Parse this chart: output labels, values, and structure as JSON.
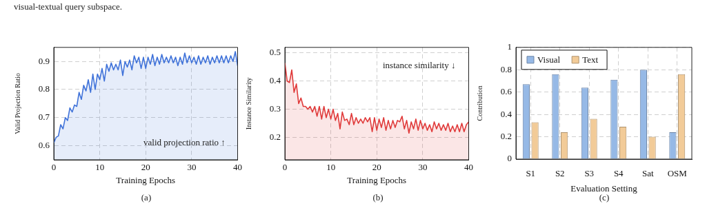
{
  "chart_data": [
    {
      "type": "area",
      "xlabel": "Training Epochs",
      "ylabel": "Valid Projection Ratio",
      "xlim": [
        0,
        40
      ],
      "xticks": [
        0,
        10,
        20,
        30,
        40
      ],
      "ylim": [
        0.55,
        0.95
      ],
      "yticks": [
        0.6,
        0.7,
        0.8,
        0.9
      ],
      "grid": true,
      "x": [
        0,
        0.5,
        1,
        1.5,
        2,
        2.5,
        3,
        3.5,
        4,
        4.5,
        5,
        5.5,
        6,
        6.5,
        7,
        7.5,
        8,
        8.5,
        9,
        9.5,
        10,
        10.5,
        11,
        11.5,
        12,
        12.5,
        13,
        13.5,
        14,
        14.5,
        15,
        15.5,
        16,
        16.5,
        17,
        17.5,
        18,
        18.5,
        19,
        19.5,
        20,
        20.5,
        21,
        21.5,
        22,
        22.5,
        23,
        23.5,
        24,
        24.5,
        25,
        25.5,
        26,
        26.5,
        27,
        27.5,
        28,
        28.5,
        29,
        29.5,
        30,
        30.5,
        31,
        31.5,
        32,
        32.5,
        33,
        33.5,
        34,
        34.5,
        35,
        35.5,
        36,
        36.5,
        37,
        37.5,
        38,
        38.5,
        39,
        39.5,
        40
      ],
      "series": [
        {
          "color": "#3f72d9",
          "values": [
            0.61,
            0.63,
            0.635,
            0.675,
            0.66,
            0.7,
            0.69,
            0.735,
            0.72,
            0.745,
            0.74,
            0.79,
            0.765,
            0.815,
            0.795,
            0.835,
            0.79,
            0.855,
            0.8,
            0.855,
            0.835,
            0.875,
            0.83,
            0.89,
            0.865,
            0.895,
            0.87,
            0.89,
            0.87,
            0.905,
            0.85,
            0.9,
            0.88,
            0.905,
            0.87,
            0.92,
            0.895,
            0.915,
            0.875,
            0.915,
            0.875,
            0.915,
            0.89,
            0.925,
            0.885,
            0.915,
            0.89,
            0.925,
            0.895,
            0.915,
            0.895,
            0.92,
            0.895,
            0.915,
            0.885,
            0.915,
            0.89,
            0.93,
            0.895,
            0.92,
            0.895,
            0.915,
            0.89,
            0.92,
            0.89,
            0.915,
            0.895,
            0.92,
            0.89,
            0.915,
            0.895,
            0.92,
            0.895,
            0.92,
            0.895,
            0.92,
            0.895,
            0.92,
            0.9,
            0.935,
            0.885
          ]
        }
      ],
      "annotations": [
        "visual-textual query subspace.",
        "valid projection ratio ↑",
        "(a)"
      ]
    },
    {
      "type": "area",
      "xlabel": "Training Epochs",
      "ylabel": "Instance Similarity",
      "xlim": [
        0,
        40
      ],
      "xticks": [
        0,
        10,
        20,
        30,
        40
      ],
      "ylim": [
        0.12,
        0.52
      ],
      "yticks": [
        0.2,
        0.3,
        0.4,
        0.5
      ],
      "grid": true,
      "x": [
        0,
        0.5,
        1,
        1.5,
        2,
        2.5,
        3,
        3.5,
        4,
        4.5,
        5,
        5.5,
        6,
        6.5,
        7,
        7.5,
        8,
        8.5,
        9,
        9.5,
        10,
        10.5,
        11,
        11.5,
        12,
        12.5,
        13,
        13.5,
        14,
        14.5,
        15,
        15.5,
        16,
        16.5,
        17,
        17.5,
        18,
        18.5,
        19,
        19.5,
        20,
        20.5,
        21,
        21.5,
        22,
        22.5,
        23,
        23.5,
        24,
        24.5,
        25,
        25.5,
        26,
        26.5,
        27,
        27.5,
        28,
        28.5,
        29,
        29.5,
        30,
        30.5,
        31,
        31.5,
        32,
        32.5,
        33,
        33.5,
        34,
        34.5,
        35,
        35.5,
        36,
        36.5,
        37,
        37.5,
        38,
        38.5,
        39,
        39.5,
        40
      ],
      "series": [
        {
          "color": "#e03a3a",
          "values": [
            0.465,
            0.4,
            0.395,
            0.44,
            0.36,
            0.39,
            0.32,
            0.34,
            0.31,
            0.31,
            0.3,
            0.31,
            0.29,
            0.31,
            0.275,
            0.31,
            0.265,
            0.31,
            0.27,
            0.3,
            0.265,
            0.3,
            0.26,
            0.285,
            0.23,
            0.29,
            0.26,
            0.265,
            0.245,
            0.285,
            0.245,
            0.27,
            0.25,
            0.265,
            0.25,
            0.27,
            0.255,
            0.27,
            0.22,
            0.27,
            0.225,
            0.265,
            0.235,
            0.27,
            0.225,
            0.26,
            0.23,
            0.26,
            0.235,
            0.26,
            0.255,
            0.275,
            0.23,
            0.26,
            0.215,
            0.255,
            0.23,
            0.265,
            0.225,
            0.26,
            0.23,
            0.25,
            0.225,
            0.245,
            0.22,
            0.255,
            0.23,
            0.25,
            0.225,
            0.245,
            0.225,
            0.25,
            0.22,
            0.24,
            0.22,
            0.245,
            0.22,
            0.25,
            0.22,
            0.245,
            0.255
          ]
        }
      ],
      "annotations": [
        "instance similarity ↓",
        "(b)"
      ]
    },
    {
      "type": "bar",
      "xlabel": "Evaluation Setting",
      "ylabel": "Contribution",
      "categories": [
        "S1",
        "S2",
        "S3",
        "S4",
        "Sat",
        "OSM"
      ],
      "ylim": [
        0,
        1
      ],
      "yticks": [
        0,
        0.2,
        0.4,
        0.6,
        0.8,
        1
      ],
      "grid": true,
      "legend": "top left",
      "series": [
        {
          "name": "Visual",
          "color": "#96b9e6",
          "values": [
            0.67,
            0.76,
            0.64,
            0.71,
            0.8,
            0.24
          ]
        },
        {
          "name": "Text",
          "color": "#f2cb98",
          "values": [
            0.33,
            0.24,
            0.36,
            0.29,
            0.2,
            0.76
          ]
        }
      ],
      "annotations": [
        "(c)"
      ]
    }
  ]
}
